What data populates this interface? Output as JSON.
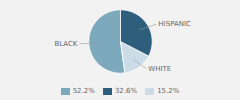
{
  "chart_data": {
    "type": "pie",
    "categories": [
      "BLACK",
      "WHITE",
      "HISPANIC"
    ],
    "values": [
      52.2,
      15.2,
      32.6
    ],
    "colors": [
      "#7da9bc",
      "#ccdce6",
      "#2d5f7c"
    ],
    "legend": "bottom",
    "legend_entries": [
      {
        "label": "52.2%",
        "color": "#7da9bc"
      },
      {
        "label": "32.6%",
        "color": "#2d5f7c"
      },
      {
        "label": "15.2%",
        "color": "#ccdce6"
      }
    ]
  }
}
